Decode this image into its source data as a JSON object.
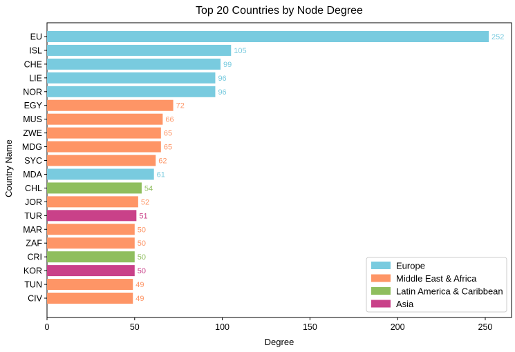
{
  "chart_data": {
    "type": "bar",
    "orientation": "horizontal",
    "title": "Top 20 Countries by Node Degree",
    "xlabel": "Degree",
    "ylabel": "Country Name",
    "xlim": [
      0,
      265
    ],
    "xticks": [
      0,
      50,
      100,
      150,
      200,
      250
    ],
    "grid": false,
    "legend_position": "bottom-right",
    "colors": {
      "Europe": "#79cbdf",
      "Middle East & Africa": "#fe9566",
      "Latin America & Caribbean": "#8fbe5e",
      "Asia": "#c94189"
    },
    "legend": [
      "Europe",
      "Middle East & Africa",
      "Latin America & Caribbean",
      "Asia"
    ],
    "bars": [
      {
        "category": "EU",
        "value": 252,
        "region": "Europe"
      },
      {
        "category": "ISL",
        "value": 105,
        "region": "Europe"
      },
      {
        "category": "CHE",
        "value": 99,
        "region": "Europe"
      },
      {
        "category": "LIE",
        "value": 96,
        "region": "Europe"
      },
      {
        "category": "NOR",
        "value": 96,
        "region": "Europe"
      },
      {
        "category": "EGY",
        "value": 72,
        "region": "Middle East & Africa"
      },
      {
        "category": "MUS",
        "value": 66,
        "region": "Middle East & Africa"
      },
      {
        "category": "ZWE",
        "value": 65,
        "region": "Middle East & Africa"
      },
      {
        "category": "MDG",
        "value": 65,
        "region": "Middle East & Africa"
      },
      {
        "category": "SYC",
        "value": 62,
        "region": "Middle East & Africa"
      },
      {
        "category": "MDA",
        "value": 61,
        "region": "Europe"
      },
      {
        "category": "CHL",
        "value": 54,
        "region": "Latin America & Caribbean"
      },
      {
        "category": "JOR",
        "value": 52,
        "region": "Middle East & Africa"
      },
      {
        "category": "TUR",
        "value": 51,
        "region": "Asia"
      },
      {
        "category": "MAR",
        "value": 50,
        "region": "Middle East & Africa"
      },
      {
        "category": "ZAF",
        "value": 50,
        "region": "Middle East & Africa"
      },
      {
        "category": "CRI",
        "value": 50,
        "region": "Latin America & Caribbean"
      },
      {
        "category": "KOR",
        "value": 50,
        "region": "Asia"
      },
      {
        "category": "TUN",
        "value": 49,
        "region": "Middle East & Africa"
      },
      {
        "category": "CIV",
        "value": 49,
        "region": "Middle East & Africa"
      }
    ]
  }
}
